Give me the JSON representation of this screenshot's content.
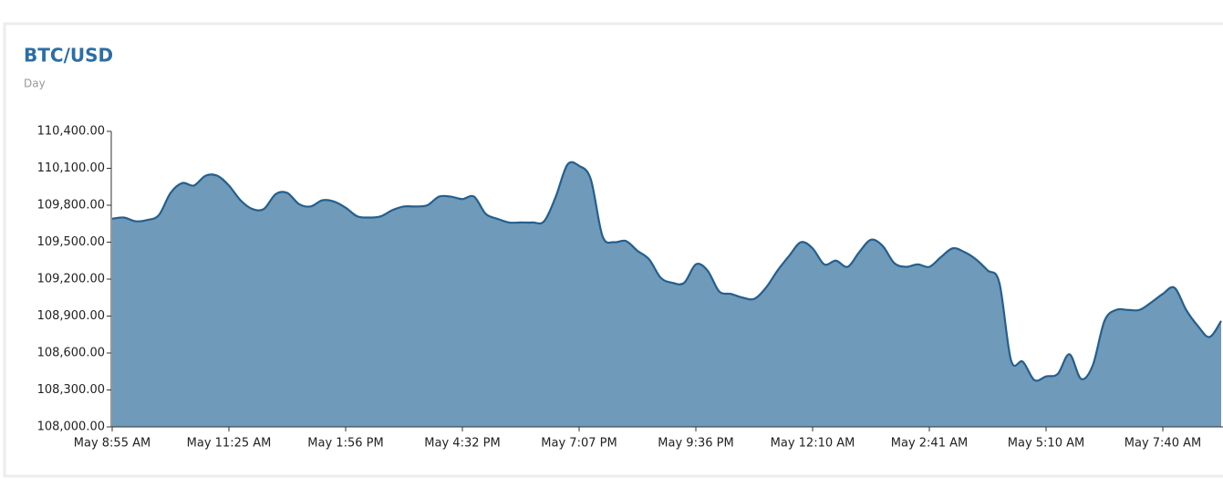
{
  "chart_data": {
    "type": "area",
    "title": "BTC/USD",
    "subtitle": "Day",
    "color": "#245f8e",
    "fill": "#6f9aba",
    "categories": [
      "May 8:55 AM",
      null,
      null,
      null,
      null,
      null,
      null,
      null,
      null,
      null,
      "May 11:25 AM",
      null,
      null,
      null,
      null,
      null,
      null,
      null,
      null,
      null,
      "May 1:56 PM",
      null,
      null,
      null,
      null,
      null,
      null,
      null,
      null,
      null,
      "May 4:32 PM",
      null,
      null,
      null,
      null,
      null,
      null,
      null,
      null,
      null,
      "May 7:07 PM",
      null,
      null,
      null,
      null,
      null,
      null,
      null,
      null,
      null,
      "May 9:36 PM",
      null,
      null,
      null,
      null,
      null,
      null,
      null,
      null,
      null,
      "May 12:10 AM",
      null,
      null,
      null,
      null,
      null,
      null,
      null,
      null,
      null,
      "May 2:41 AM",
      null,
      null,
      null,
      null,
      null,
      null,
      null,
      null,
      null,
      "May 5:10 AM",
      null,
      null,
      null,
      null,
      null,
      null,
      null,
      null,
      null,
      "May 7:40 AM",
      null,
      null,
      null,
      null,
      null
    ],
    "values": [
      109690,
      109700,
      109670,
      109680,
      109720,
      109900,
      109980,
      109960,
      110040,
      110040,
      109960,
      109840,
      109770,
      109770,
      109890,
      109900,
      109810,
      109790,
      109840,
      109830,
      109780,
      109710,
      109700,
      109710,
      109760,
      109790,
      109790,
      109800,
      109870,
      109870,
      109850,
      109870,
      109730,
      109690,
      109660,
      109660,
      109660,
      109670,
      109870,
      110130,
      110120,
      110010,
      109550,
      109500,
      109510,
      109430,
      109360,
      109210,
      109170,
      109170,
      109320,
      109270,
      109100,
      109080,
      109050,
      109040,
      109130,
      109270,
      109390,
      109500,
      109450,
      109320,
      109350,
      109300,
      109420,
      109520,
      109470,
      109330,
      109300,
      109320,
      109300,
      109380,
      109450,
      109420,
      109360,
      109270,
      109170,
      108540,
      108530,
      108380,
      108410,
      108430,
      108590,
      108390,
      108500,
      108860,
      108950,
      108950,
      108950,
      109010,
      109080,
      109130,
      108950,
      108820,
      108730,
      108860
    ],
    "ylim": [
      108000,
      110400
    ],
    "yticks": [
      {
        "value": 108000,
        "label": "108,000.00"
      },
      {
        "value": 108300,
        "label": "108,300.00"
      },
      {
        "value": 108600,
        "label": "108,600.00"
      },
      {
        "value": 108900,
        "label": "108,900.00"
      },
      {
        "value": 109200,
        "label": "109,200.00"
      },
      {
        "value": 109500,
        "label": "109,500.00"
      },
      {
        "value": 109800,
        "label": "109,800.00"
      },
      {
        "value": 110100,
        "label": "110,100.00"
      },
      {
        "value": 110400,
        "label": "110,400.00"
      }
    ]
  }
}
